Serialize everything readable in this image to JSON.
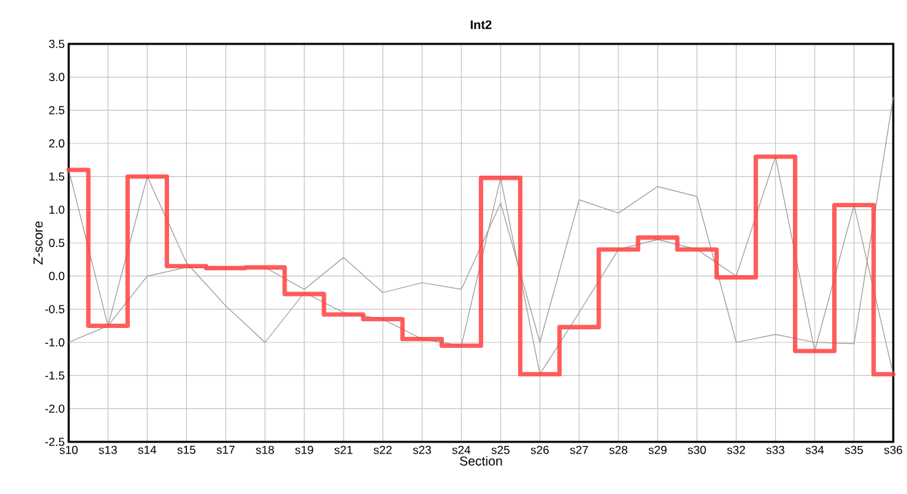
{
  "chart_data": {
    "type": "line",
    "title": "Int2",
    "xlabel": "Section",
    "ylabel": "Z-score",
    "categories": [
      "s10",
      "s13",
      "s14",
      "s15",
      "s17",
      "s18",
      "s19",
      "s21",
      "s22",
      "s23",
      "s24",
      "s25",
      "s26",
      "s27",
      "s28",
      "s29",
      "s30",
      "s32",
      "s33",
      "s34",
      "s35",
      "s36"
    ],
    "ylim": [
      -2.5,
      3.5
    ],
    "yticks": [
      {
        "value": -2.5,
        "label": "-2.5"
      },
      {
        "value": -2.0,
        "label": "-2.0"
      },
      {
        "value": -1.5,
        "label": "-1.5"
      },
      {
        "value": -1.0,
        "label": "-1.0"
      },
      {
        "value": -0.5,
        "label": "-0.5"
      },
      {
        "value": 0,
        "label": "0.0"
      },
      {
        "value": 0.5,
        "label": "0.5"
      },
      {
        "value": 1.0,
        "label": "1.0"
      },
      {
        "value": 1.5,
        "label": "1.5"
      },
      {
        "value": 2.0,
        "label": "2.0"
      },
      {
        "value": 2.5,
        "label": "2.5"
      },
      {
        "value": 3.0,
        "label": "3.0"
      },
      {
        "value": 3.5,
        "label": "3.5"
      }
    ],
    "grid": true,
    "marker": "none",
    "series": [
      {
        "color": "#999999",
        "values": [
          -1.0,
          -0.75,
          0.0,
          0.13,
          0.12,
          0.13,
          -0.2,
          0.28,
          -0.25,
          -0.1,
          -0.2,
          1.1,
          -1.0,
          1.15,
          0.95,
          1.35,
          1.2,
          -1.0,
          -0.88,
          -1.0,
          -1.02,
          2.7
        ]
      },
      {
        "color": "#999999",
        "values": [
          1.6,
          -0.75,
          1.5,
          0.2,
          -0.45,
          -1.0,
          -0.25,
          -0.55,
          -0.65,
          -0.95,
          -1.05,
          1.48,
          -1.48,
          -0.55,
          0.4,
          0.55,
          0.4,
          0.0,
          1.8,
          -1.13,
          1.07,
          -1.48
        ]
      },
      {
        "type": "step",
        "color": "#ff4040",
        "values": [
          1.6,
          -0.75,
          1.5,
          0.15,
          0.12,
          0.13,
          -0.27,
          -0.58,
          -0.65,
          -0.95,
          -1.05,
          1.48,
          -1.48,
          -0.77,
          0.4,
          0.58,
          0.4,
          -0.02,
          1.8,
          -1.13,
          1.07,
          -1.48
        ]
      }
    ]
  }
}
